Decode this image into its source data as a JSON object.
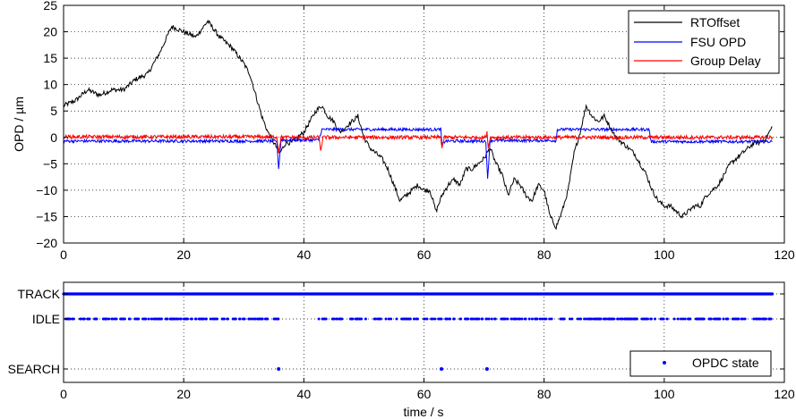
{
  "chart_data": [
    {
      "type": "line",
      "title": "",
      "xlabel": "",
      "ylabel": "OPD / µm",
      "xlim": [
        0,
        120
      ],
      "ylim": [
        -20,
        25
      ],
      "xticks": [
        0,
        20,
        40,
        60,
        80,
        100,
        120
      ],
      "yticks": [
        -20,
        -15,
        -10,
        -5,
        0,
        5,
        10,
        15,
        20,
        25
      ],
      "xtick_labels": [
        "0",
        "20",
        "40",
        "60",
        "80",
        "100",
        "120"
      ],
      "ytick_labels": [
        "−20",
        "−15",
        "−10",
        "−5",
        "0",
        "5",
        "10",
        "15",
        "20",
        "25"
      ],
      "grid": true,
      "legend_position": "top-right",
      "series": [
        {
          "name": "RTOffset",
          "color": "#000000",
          "points": [
            [
              0,
              6
            ],
            [
              2,
              7
            ],
            [
              4,
              9
            ],
            [
              6,
              8
            ],
            [
              8,
              9
            ],
            [
              10,
              9
            ],
            [
              12,
              11
            ],
            [
              14,
              12
            ],
            [
              16,
              16
            ],
            [
              18,
              21
            ],
            [
              20,
              20
            ],
            [
              22,
              19
            ],
            [
              24,
              22
            ],
            [
              26,
              19
            ],
            [
              28,
              17
            ],
            [
              30,
              14
            ],
            [
              31,
              12
            ],
            [
              32,
              8
            ],
            [
              33,
              4
            ],
            [
              34,
              1
            ],
            [
              35,
              -1
            ],
            [
              36,
              -3
            ],
            [
              37,
              -1
            ],
            [
              38,
              -1
            ],
            [
              39,
              0
            ],
            [
              40,
              1
            ],
            [
              41,
              3
            ],
            [
              42,
              5
            ],
            [
              43,
              6
            ],
            [
              44,
              4
            ],
            [
              45,
              3
            ],
            [
              46,
              1
            ],
            [
              47,
              2
            ],
            [
              48,
              3
            ],
            [
              49,
              4
            ],
            [
              50,
              0
            ],
            [
              51,
              -2
            ],
            [
              52,
              -3
            ],
            [
              53,
              -4
            ],
            [
              54,
              -6
            ],
            [
              55,
              -9
            ],
            [
              56,
              -12
            ],
            [
              57,
              -11
            ],
            [
              58,
              -10
            ],
            [
              59,
              -9
            ],
            [
              60,
              -10
            ],
            [
              61,
              -10
            ],
            [
              62,
              -14
            ],
            [
              63,
              -11
            ],
            [
              64,
              -9
            ],
            [
              65,
              -8
            ],
            [
              66,
              -9
            ],
            [
              67,
              -6
            ],
            [
              68,
              -6
            ],
            [
              69,
              -5
            ],
            [
              70,
              -4
            ],
            [
              71,
              -2
            ],
            [
              72,
              -5
            ],
            [
              73,
              -7
            ],
            [
              74,
              -11
            ],
            [
              75,
              -8
            ],
            [
              76,
              -9
            ],
            [
              77,
              -11
            ],
            [
              78,
              -12
            ],
            [
              79,
              -9
            ],
            [
              80,
              -10
            ],
            [
              81,
              -15
            ],
            [
              82,
              -17
            ],
            [
              83,
              -14
            ],
            [
              84,
              -10
            ],
            [
              85,
              -3
            ],
            [
              86,
              1
            ],
            [
              87,
              6
            ],
            [
              88,
              4
            ],
            [
              89,
              3
            ],
            [
              90,
              4
            ],
            [
              91,
              2
            ],
            [
              92,
              0
            ],
            [
              93,
              -1
            ],
            [
              94,
              -2
            ],
            [
              95,
              -3
            ],
            [
              96,
              -5
            ],
            [
              97,
              -7
            ],
            [
              98,
              -10
            ],
            [
              99,
              -12
            ],
            [
              100,
              -13
            ],
            [
              101,
              -13
            ],
            [
              102,
              -14
            ],
            [
              103,
              -15
            ],
            [
              104,
              -14
            ],
            [
              105,
              -13
            ],
            [
              106,
              -13
            ],
            [
              107,
              -11
            ],
            [
              108,
              -10
            ],
            [
              109,
              -9
            ],
            [
              110,
              -7
            ],
            [
              111,
              -5
            ],
            [
              112,
              -4
            ],
            [
              113,
              -3
            ],
            [
              114,
              -2
            ],
            [
              115,
              -1
            ],
            [
              116,
              -1
            ],
            [
              117,
              0
            ],
            [
              118,
              2
            ]
          ]
        },
        {
          "name": "FSU OPD",
          "color": "#0000ff",
          "points": [
            [
              0,
              -0.7
            ],
            [
              35.5,
              -0.7
            ],
            [
              35.8,
              -6
            ],
            [
              36.2,
              -0.5
            ],
            [
              42.5,
              -0.5
            ],
            [
              43,
              1.5
            ],
            [
              62.8,
              1.5
            ],
            [
              63,
              -1.5
            ],
            [
              63.5,
              -0.7
            ],
            [
              70.3,
              -0.7
            ],
            [
              70.6,
              -8
            ],
            [
              71,
              -0.6
            ],
            [
              82,
              -0.6
            ],
            [
              82.2,
              1.5
            ],
            [
              97.5,
              1.5
            ],
            [
              97.8,
              -0.8
            ],
            [
              118,
              -0.8
            ]
          ]
        },
        {
          "name": "Group Delay",
          "color": "#ff0000",
          "points": [
            [
              0,
              0.1
            ],
            [
              35.5,
              0.1
            ],
            [
              35.8,
              -2.8
            ],
            [
              36.2,
              0
            ],
            [
              42.5,
              0
            ],
            [
              42.8,
              -2.5
            ],
            [
              43.2,
              0
            ],
            [
              62.8,
              0
            ],
            [
              63,
              -2
            ],
            [
              63.4,
              0
            ],
            [
              70.3,
              0
            ],
            [
              70.5,
              1.2
            ],
            [
              70.7,
              -2
            ],
            [
              71,
              0
            ],
            [
              118,
              0
            ]
          ]
        }
      ]
    },
    {
      "type": "scatter",
      "title": "",
      "xlabel": "time / s",
      "ylabel": "",
      "xlim": [
        0,
        120
      ],
      "xticks": [
        0,
        20,
        40,
        60,
        80,
        100,
        120
      ],
      "xtick_labels": [
        "0",
        "20",
        "40",
        "60",
        "80",
        "100",
        "120"
      ],
      "categories": [
        "TRACK",
        "IDLE",
        "SEARCH"
      ],
      "grid": true,
      "legend_position": "bottom-right",
      "series": [
        {
          "name": "OPDC state",
          "color": "#0000ff",
          "track": [
            [
              0,
              118
            ]
          ],
          "idle": [
            [
              0,
              36
            ],
            [
              42.5,
              63
            ],
            [
              63.5,
              82
            ],
            [
              82.5,
              118
            ]
          ],
          "search": [
            35.8,
            62.9,
            70.5
          ]
        }
      ]
    }
  ]
}
